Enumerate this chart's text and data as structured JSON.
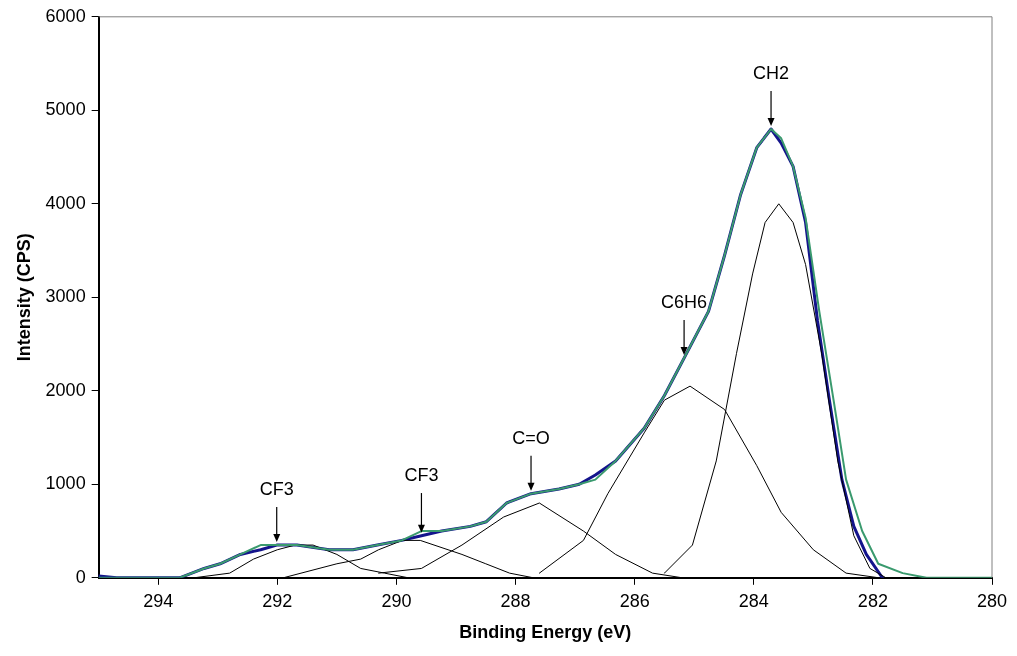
{
  "chart_data": {
    "type": "line",
    "xlabel": "Binding Energy (eV)",
    "ylabel": "Intensity (CPS)",
    "xlim": [
      295,
      280
    ],
    "xticks": [
      294,
      292,
      290,
      288,
      286,
      284,
      282,
      280
    ],
    "ylim": [
      0,
      6000
    ],
    "yticks": [
      0,
      1000,
      2000,
      3000,
      4000,
      5000,
      6000
    ],
    "grid": false,
    "legend": false,
    "marker": "none",
    "line_style": "solid",
    "series": [
      {
        "color": "#14148c",
        "x": [
          295.0,
          294.7,
          294.32,
          293.64,
          293.23,
          292.96,
          292.62,
          292.28,
          292.01,
          291.67,
          291.13,
          290.73,
          290.32,
          289.91,
          289.58,
          289.24,
          288.76,
          288.49,
          288.15,
          287.74,
          287.27,
          286.93,
          286.66,
          286.32,
          285.84,
          285.5,
          285.17,
          284.76,
          284.49,
          284.22,
          283.95,
          283.71,
          283.54,
          283.34,
          283.13,
          282.93,
          282.73,
          282.52,
          282.32,
          282.11,
          281.84
        ],
        "values": [
          20,
          0,
          0,
          0,
          100,
          150,
          250,
          300,
          350,
          350,
          300,
          300,
          350,
          400,
          450,
          500,
          550,
          600,
          800,
          900,
          950,
          1000,
          1100,
          1250,
          1600,
          1950,
          2350,
          2850,
          3450,
          4100,
          4600,
          4800,
          4650,
          4400,
          3800,
          2750,
          1900,
          1050,
          550,
          250,
          0
        ]
      },
      {
        "color": "#3a9a6e",
        "x": [
          295.0,
          294.32,
          293.64,
          293.23,
          292.96,
          292.62,
          292.28,
          292.01,
          291.67,
          291.13,
          290.73,
          290.32,
          289.91,
          289.58,
          289.24,
          288.76,
          288.49,
          288.15,
          287.74,
          287.27,
          286.93,
          286.66,
          286.32,
          285.84,
          285.5,
          285.17,
          284.76,
          284.49,
          284.22,
          283.95,
          283.71,
          283.54,
          283.34,
          283.13,
          282.9,
          282.66,
          282.45,
          282.18,
          281.91,
          281.5,
          281.1,
          280.5,
          280.0
        ],
        "values": [
          0,
          0,
          0,
          100,
          150,
          250,
          350,
          350,
          350,
          300,
          300,
          350,
          400,
          500,
          500,
          550,
          600,
          800,
          900,
          950,
          1000,
          1050,
          1250,
          1600,
          1950,
          2350,
          2850,
          3450,
          4100,
          4600,
          4800,
          4700,
          4400,
          3850,
          2850,
          1900,
          1050,
          500,
          150,
          50,
          0,
          0,
          0
        ]
      },
      {
        "color": "#000000",
        "x": [
          293.4,
          292.8,
          292.4,
          292.0,
          291.7,
          291.4,
          291.0,
          290.6,
          290.2,
          289.8
        ],
        "values": [
          0,
          50,
          200,
          300,
          350,
          350,
          250,
          100,
          50,
          0
        ]
      },
      {
        "color": "#000000",
        "x": [
          291.9,
          291.0,
          290.6,
          290.3,
          289.9,
          289.6,
          288.9,
          288.5,
          288.1,
          287.7
        ],
        "values": [
          0,
          150,
          200,
          300,
          400,
          400,
          250,
          150,
          50,
          0
        ]
      },
      {
        "color": "#000000",
        "x": [
          290.3,
          289.58,
          288.9,
          288.2,
          287.6,
          286.86,
          286.32,
          285.7,
          285.2
        ],
        "values": [
          50,
          100,
          350,
          650,
          800,
          500,
          250,
          50,
          0
        ]
      },
      {
        "color": "#000000",
        "x": [
          287.6,
          286.86,
          286.45,
          285.84,
          285.5,
          285.07,
          284.49,
          283.95,
          283.54,
          283.0,
          282.45,
          281.9
        ],
        "values": [
          50,
          400,
          900,
          1550,
          1900,
          2050,
          1800,
          1200,
          700,
          300,
          50,
          0
        ]
      },
      {
        "color": "#000000",
        "x": [
          285.5,
          285.03,
          284.63,
          284.29,
          284.02,
          283.81,
          283.58,
          283.34,
          283.13,
          282.86,
          282.59,
          282.32,
          282.05,
          281.78
        ],
        "values": [
          50,
          350,
          1250,
          2400,
          3250,
          3800,
          4000,
          3800,
          3350,
          2400,
          1250,
          450,
          100,
          0
        ]
      }
    ],
    "annotations": [
      {
        "text": "CF3",
        "x": 292.01,
        "y": 350
      },
      {
        "text": "CF3",
        "x": 289.58,
        "y": 450
      },
      {
        "text": "C=O",
        "x": 287.74,
        "y": 900
      },
      {
        "text": "C6H6",
        "x": 285.17,
        "y": 2350
      },
      {
        "text": "CH2",
        "x": 283.71,
        "y": 4800
      }
    ]
  }
}
